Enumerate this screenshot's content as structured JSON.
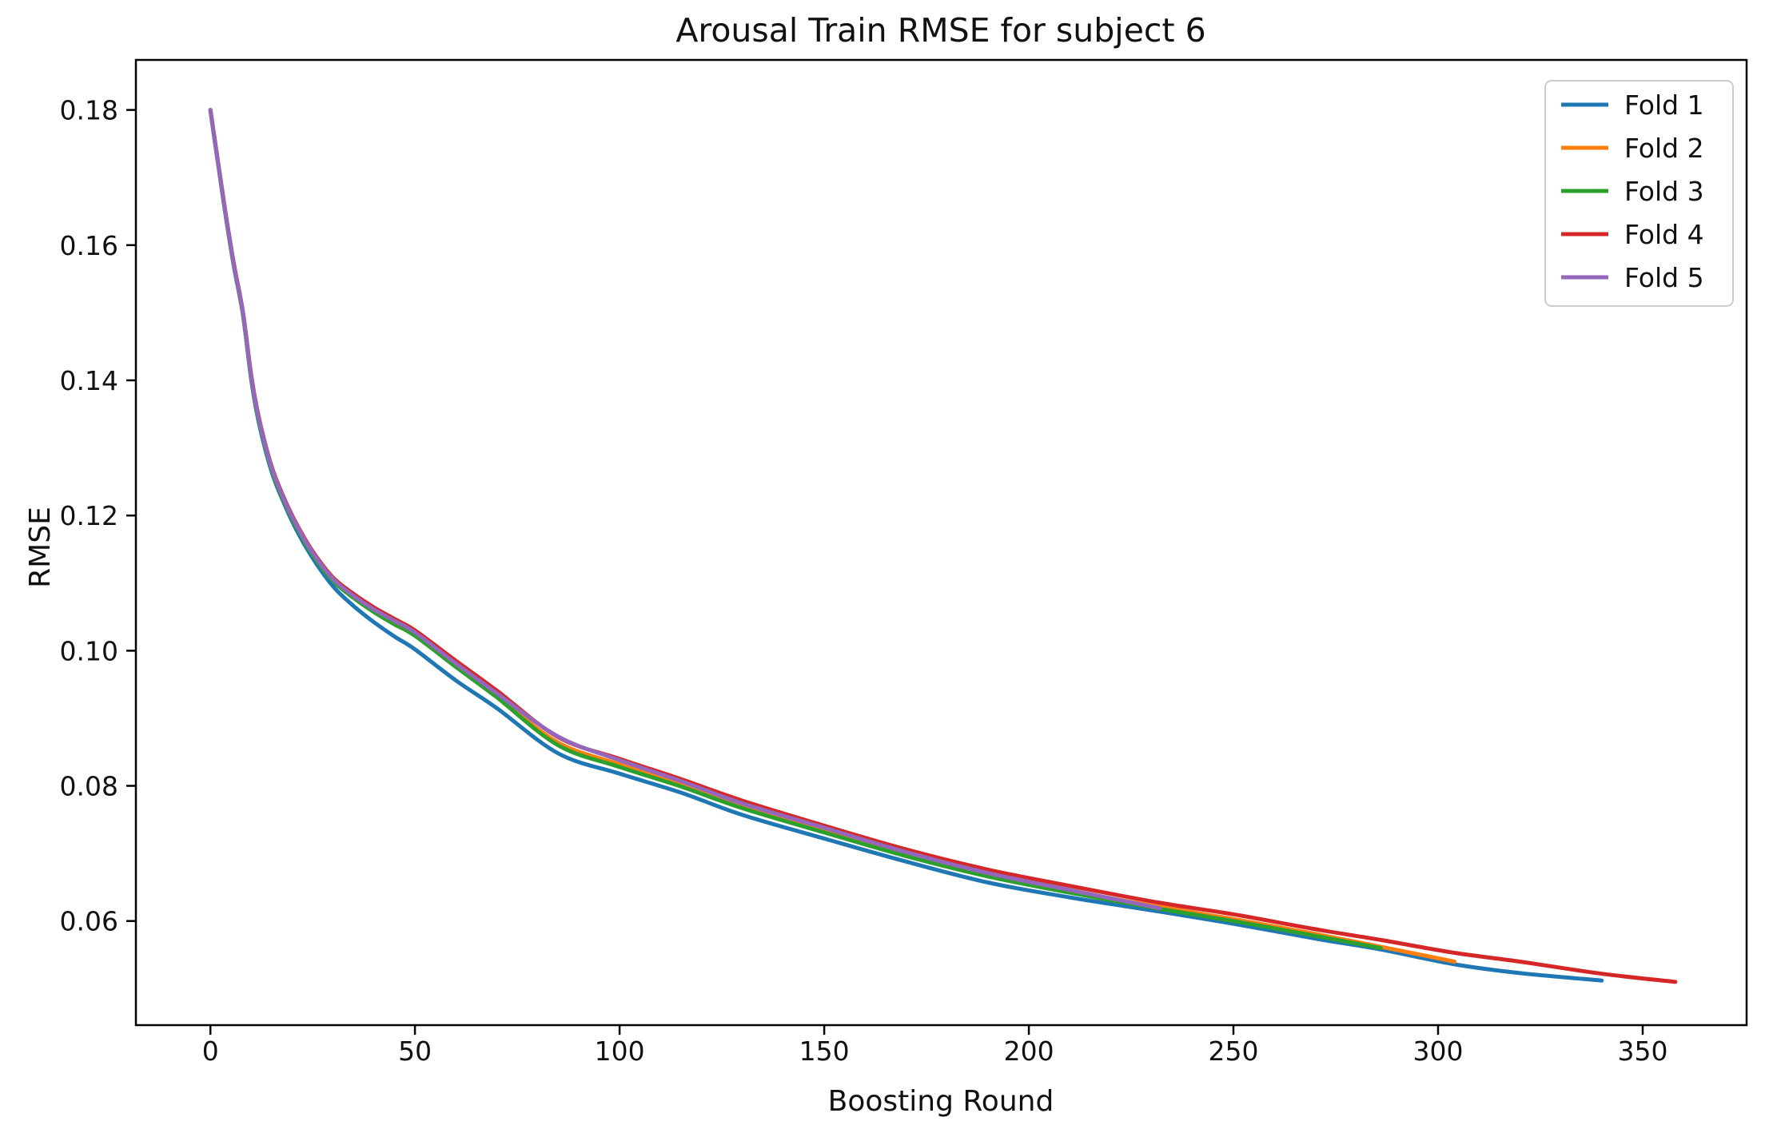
{
  "figure": {
    "background": "#ffffff",
    "text_color": "#111111",
    "spine_color": "#000000"
  },
  "chart_data": {
    "type": "line",
    "title": "Arousal Train RMSE for subject 6",
    "xlabel": "Boosting Round",
    "ylabel": "RMSE",
    "xlim": [
      -18.2,
      375.4
    ],
    "ylim": [
      0.0446,
      0.1874
    ],
    "xticks": [
      0,
      50,
      100,
      150,
      200,
      250,
      300,
      350
    ],
    "yticks": [
      0.06,
      0.08,
      0.1,
      0.12,
      0.14,
      0.16,
      0.18
    ],
    "ytick_labels": [
      "0.06",
      "0.08",
      "0.10",
      "0.12",
      "0.14",
      "0.16",
      "0.18"
    ],
    "grid": false,
    "legend": {
      "position": "upper right"
    },
    "series": [
      {
        "name": "Fold 1",
        "color": "#1f77b4",
        "points": [
          [
            0,
            0.18
          ],
          [
            1,
            0.1757
          ],
          [
            2,
            0.1716
          ],
          [
            3,
            0.1674
          ],
          [
            4,
            0.1633
          ],
          [
            5,
            0.1595
          ],
          [
            6,
            0.156
          ],
          [
            8,
            0.1496
          ],
          [
            10,
            0.14
          ],
          [
            12,
            0.1333
          ],
          [
            15,
            0.1264
          ],
          [
            18,
            0.1218
          ],
          [
            21,
            0.1179
          ],
          [
            25,
            0.1137
          ],
          [
            30,
            0.1095
          ],
          [
            35,
            0.1066
          ],
          [
            40,
            0.1042
          ],
          [
            45,
            0.1021
          ],
          [
            50,
            0.1002
          ],
          [
            60,
            0.0956
          ],
          [
            70,
            0.0915
          ],
          [
            85,
            0.0848
          ],
          [
            100,
            0.0818
          ],
          [
            115,
            0.079
          ],
          [
            130,
            0.0757
          ],
          [
            150,
            0.0722
          ],
          [
            170,
            0.0688
          ],
          [
            190,
            0.0657
          ],
          [
            210,
            0.0635
          ],
          [
            232,
            0.0614
          ],
          [
            250,
            0.0596
          ],
          [
            270,
            0.0574
          ],
          [
            286,
            0.0558
          ],
          [
            304,
            0.0536
          ],
          [
            320,
            0.0523
          ],
          [
            340,
            0.0512
          ]
        ]
      },
      {
        "name": "Fold 2",
        "color": "#ff7f0e",
        "points": [
          [
            0,
            0.18
          ],
          [
            1,
            0.1758
          ],
          [
            2,
            0.1717
          ],
          [
            3,
            0.1675
          ],
          [
            4,
            0.1634
          ],
          [
            5,
            0.1597
          ],
          [
            6,
            0.1562
          ],
          [
            8,
            0.1498
          ],
          [
            10,
            0.1404
          ],
          [
            12,
            0.1338
          ],
          [
            15,
            0.1269
          ],
          [
            18,
            0.1223
          ],
          [
            21,
            0.1185
          ],
          [
            25,
            0.1144
          ],
          [
            30,
            0.1105
          ],
          [
            35,
            0.108
          ],
          [
            40,
            0.1059
          ],
          [
            45,
            0.1041
          ],
          [
            50,
            0.1024
          ],
          [
            60,
            0.0978
          ],
          [
            70,
            0.0933
          ],
          [
            85,
            0.0864
          ],
          [
            100,
            0.0832
          ],
          [
            115,
            0.0803
          ],
          [
            130,
            0.0771
          ],
          [
            150,
            0.0735
          ],
          [
            170,
            0.07
          ],
          [
            190,
            0.0669
          ],
          [
            210,
            0.0645
          ],
          [
            232,
            0.0621
          ],
          [
            250,
            0.0603
          ],
          [
            270,
            0.0581
          ],
          [
            286,
            0.0562
          ],
          [
            304,
            0.054
          ]
        ]
      },
      {
        "name": "Fold 3",
        "color": "#2ca02c",
        "points": [
          [
            0,
            0.18
          ],
          [
            1,
            0.1757
          ],
          [
            2,
            0.1716
          ],
          [
            3,
            0.1674
          ],
          [
            4,
            0.1633
          ],
          [
            5,
            0.1595
          ],
          [
            6,
            0.156
          ],
          [
            8,
            0.1496
          ],
          [
            10,
            0.1402
          ],
          [
            12,
            0.1336
          ],
          [
            15,
            0.1267
          ],
          [
            18,
            0.1221
          ],
          [
            21,
            0.1183
          ],
          [
            25,
            0.1142
          ],
          [
            30,
            0.1103
          ],
          [
            35,
            0.1078
          ],
          [
            40,
            0.1057
          ],
          [
            45,
            0.1039
          ],
          [
            50,
            0.1022
          ],
          [
            60,
            0.0976
          ],
          [
            70,
            0.0931
          ],
          [
            85,
            0.086
          ],
          [
            100,
            0.0828
          ],
          [
            115,
            0.0799
          ],
          [
            130,
            0.0767
          ],
          [
            150,
            0.0731
          ],
          [
            170,
            0.0696
          ],
          [
            190,
            0.0666
          ],
          [
            210,
            0.0642
          ],
          [
            232,
            0.0618
          ],
          [
            250,
            0.06
          ],
          [
            270,
            0.0578
          ],
          [
            286,
            0.056
          ]
        ]
      },
      {
        "name": "Fold 4",
        "color": "#d62728",
        "points": [
          [
            0,
            0.18
          ],
          [
            1,
            0.1759
          ],
          [
            2,
            0.1718
          ],
          [
            3,
            0.1677
          ],
          [
            4,
            0.1636
          ],
          [
            5,
            0.1599
          ],
          [
            6,
            0.1564
          ],
          [
            8,
            0.15
          ],
          [
            10,
            0.1407
          ],
          [
            12,
            0.1341
          ],
          [
            15,
            0.1272
          ],
          [
            18,
            0.1226
          ],
          [
            21,
            0.1188
          ],
          [
            25,
            0.1147
          ],
          [
            30,
            0.1108
          ],
          [
            35,
            0.1084
          ],
          [
            40,
            0.1064
          ],
          [
            45,
            0.1047
          ],
          [
            50,
            0.103
          ],
          [
            60,
            0.0985
          ],
          [
            70,
            0.0941
          ],
          [
            85,
            0.0872
          ],
          [
            100,
            0.084
          ],
          [
            115,
            0.081
          ],
          [
            130,
            0.0778
          ],
          [
            150,
            0.0741
          ],
          [
            170,
            0.0706
          ],
          [
            190,
            0.0676
          ],
          [
            210,
            0.0652
          ],
          [
            232,
            0.0627
          ],
          [
            250,
            0.061
          ],
          [
            270,
            0.0588
          ],
          [
            286,
            0.0572
          ],
          [
            304,
            0.0553
          ],
          [
            320,
            0.054
          ],
          [
            340,
            0.0522
          ],
          [
            358,
            0.051
          ]
        ]
      },
      {
        "name": "Fold 5",
        "color": "#9467bd",
        "points": [
          [
            0,
            0.18
          ],
          [
            1,
            0.1758
          ],
          [
            2,
            0.1717
          ],
          [
            3,
            0.1676
          ],
          [
            4,
            0.1635
          ],
          [
            5,
            0.1598
          ],
          [
            6,
            0.1562
          ],
          [
            8,
            0.1499
          ],
          [
            10,
            0.1405
          ],
          [
            12,
            0.1339
          ],
          [
            15,
            0.127
          ],
          [
            18,
            0.1224
          ],
          [
            21,
            0.1186
          ],
          [
            25,
            0.1145
          ],
          [
            30,
            0.1106
          ],
          [
            35,
            0.1081
          ],
          [
            40,
            0.1061
          ],
          [
            45,
            0.1044
          ],
          [
            50,
            0.1027
          ],
          [
            60,
            0.0981
          ],
          [
            70,
            0.0937
          ],
          [
            85,
            0.0873
          ],
          [
            100,
            0.0838
          ],
          [
            115,
            0.0807
          ],
          [
            130,
            0.0774
          ],
          [
            150,
            0.0738
          ],
          [
            170,
            0.0702
          ],
          [
            190,
            0.0671
          ],
          [
            210,
            0.0646
          ],
          [
            232,
            0.0619
          ]
        ]
      }
    ]
  }
}
